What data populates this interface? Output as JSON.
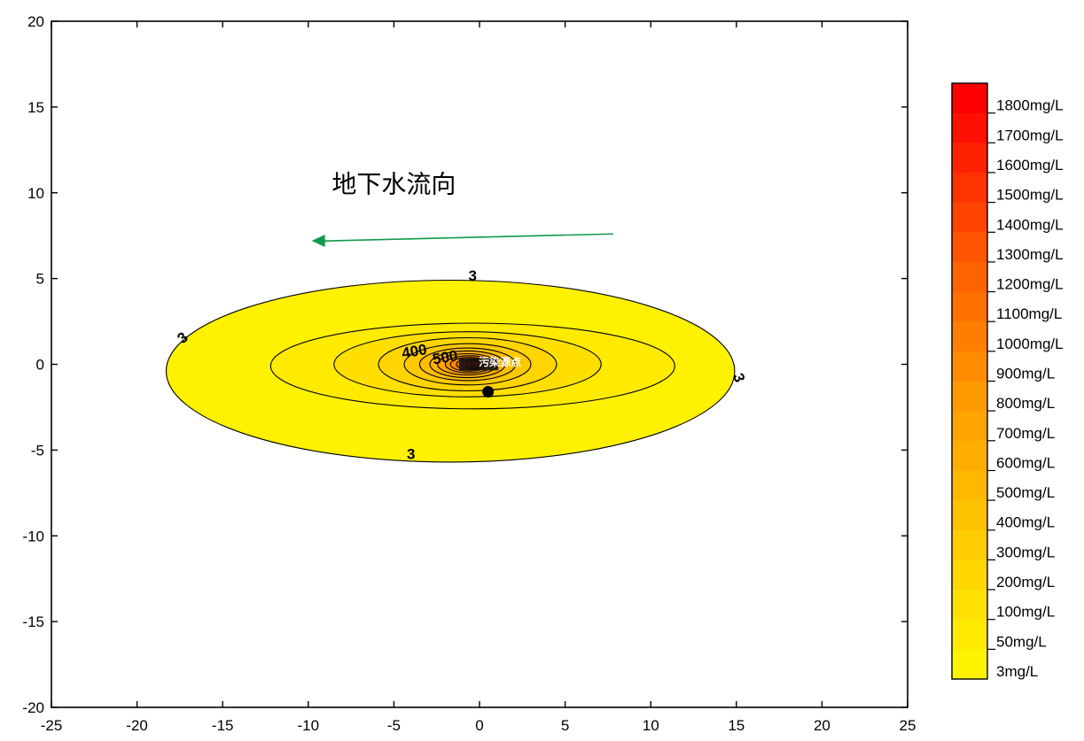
{
  "chart_data": {
    "type": "contour",
    "title": "",
    "xlabel": "",
    "ylabel": "",
    "xlim": [
      -25,
      25
    ],
    "ylim": [
      -20,
      20
    ],
    "x_ticks": [
      -25,
      -20,
      -15,
      -10,
      -5,
      0,
      5,
      10,
      15,
      20,
      25
    ],
    "y_ticks": [
      -20,
      -15,
      -10,
      -5,
      0,
      5,
      10,
      15,
      20
    ],
    "grid": false,
    "legend_position": "right",
    "legend": [
      {
        "label": "1800mg/L",
        "color": "#ff0000"
      },
      {
        "label": "1700mg/L",
        "color": "#ff1000"
      },
      {
        "label": "1600mg/L",
        "color": "#ff2200"
      },
      {
        "label": "1500mg/L",
        "color": "#ff3300"
      },
      {
        "label": "1400mg/L",
        "color": "#ff4400"
      },
      {
        "label": "1300mg/L",
        "color": "#ff5500"
      },
      {
        "label": "1200mg/L",
        "color": "#ff6300"
      },
      {
        "label": "1100mg/L",
        "color": "#ff7100"
      },
      {
        "label": "1000mg/L",
        "color": "#ff7e00"
      },
      {
        "label": "900mg/L",
        "color": "#ff8c00"
      },
      {
        "label": "800mg/L",
        "color": "#ff9900"
      },
      {
        "label": "700mg/L",
        "color": "#ffa400"
      },
      {
        "label": "600mg/L",
        "color": "#ffae00"
      },
      {
        "label": "500mg/L",
        "color": "#ffb800"
      },
      {
        "label": "400mg/L",
        "color": "#ffc200"
      },
      {
        "label": "300mg/L",
        "color": "#ffcc00"
      },
      {
        "label": "200mg/L",
        "color": "#ffd600"
      },
      {
        "label": "100mg/L",
        "color": "#ffe000"
      },
      {
        "label": "50mg/L",
        "color": "#ffea00"
      },
      {
        "label": "3mg/L",
        "color": "#fff400"
      }
    ],
    "contours": [
      {
        "level": 3,
        "center": [
          -1.7,
          -0.4
        ],
        "rx": 16.6,
        "ry": 5.3,
        "color": "#fff200"
      },
      {
        "level": 50,
        "center": [
          -0.4,
          -0.1
        ],
        "rx": 11.8,
        "ry": 2.5,
        "color": "#ffea00"
      },
      {
        "level": 100,
        "center": [
          -0.7,
          0
        ],
        "rx": 7.8,
        "ry": 1.9,
        "color": "#ffdf00"
      },
      {
        "level": 200,
        "center": [
          -0.7,
          0
        ],
        "rx": 5.2,
        "ry": 1.55,
        "color": "#ffd400"
      },
      {
        "level": 300,
        "center": [
          -0.7,
          0
        ],
        "rx": 3.7,
        "ry": 1.2,
        "color": "#ffc900"
      },
      {
        "level": 400,
        "center": [
          -0.7,
          0
        ],
        "rx": 2.8,
        "ry": 0.95,
        "color": "#ffbd00"
      },
      {
        "level": 500,
        "center": [
          -0.7,
          0
        ],
        "rx": 2.2,
        "ry": 0.78,
        "color": "#ffb100"
      },
      {
        "level": 600,
        "center": [
          -0.7,
          0
        ],
        "rx": 1.75,
        "ry": 0.62,
        "color": "#ffa500"
      },
      {
        "level": 700,
        "center": [
          -0.6,
          0
        ],
        "rx": 1.4,
        "ry": 0.5,
        "color": "#ff9700"
      },
      {
        "level": 800,
        "center": [
          -0.6,
          0
        ],
        "rx": 1.1,
        "ry": 0.4,
        "color": "#ff8800"
      },
      {
        "level": 900,
        "center": [
          -0.5,
          0
        ],
        "rx": 0.85,
        "ry": 0.32,
        "color": "#ff7700"
      },
      {
        "level": 1000,
        "center": [
          -0.4,
          0
        ],
        "rx": 0.65,
        "ry": 0.26,
        "color": "#ff5a00"
      },
      {
        "level": 1200,
        "center": [
          -0.3,
          0
        ],
        "rx": 0.5,
        "ry": 0.2,
        "color": "#ff3000"
      },
      {
        "level": 1500,
        "center": [
          -0.2,
          0.05
        ],
        "rx": 0.32,
        "ry": 0.15,
        "color": "#ff0a00"
      }
    ],
    "contour_labels": [
      {
        "text": "3",
        "x": -0.4,
        "y": 5.1,
        "rotate": 0
      },
      {
        "text": "3",
        "x": -17.3,
        "y": 1.5,
        "rotate": -40
      },
      {
        "text": "3",
        "x": 15.1,
        "y": -0.8,
        "rotate": 70
      },
      {
        "text": "3",
        "x": -4.0,
        "y": -5.3,
        "rotate": 0
      },
      {
        "text": "400",
        "x": -3.8,
        "y": 0.7,
        "rotate": -10
      },
      {
        "text": "500",
        "x": -2.0,
        "y": 0.35,
        "rotate": -10
      }
    ],
    "annotations": [
      {
        "id": "flow",
        "text": "地下水流向",
        "x": -5,
        "y": 10.4
      },
      {
        "id": "source",
        "text": "污染源点",
        "x": 1.2,
        "y": 0.1
      }
    ],
    "flow_arrow": {
      "from": [
        7.8,
        7.6
      ],
      "to": [
        -9.8,
        7.2
      ],
      "color": "#109a4a"
    },
    "marker": {
      "x": 0.5,
      "y": -1.6
    }
  }
}
